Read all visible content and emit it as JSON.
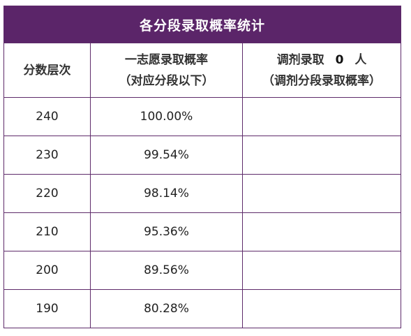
{
  "table": {
    "title": "各分段录取概率统计",
    "headers": {
      "level": "分数层次",
      "rate_line1": "一志愿录取概率",
      "rate_line2": "（对应分段以下）",
      "adjust_prefix": "调剂录取",
      "adjust_count": "0",
      "adjust_suffix": "人",
      "adjust_line2": "（调剂分段录取概率）"
    },
    "rows": [
      {
        "level": "240",
        "rate": "100.00%",
        "adjust": ""
      },
      {
        "level": "230",
        "rate": "99.54%",
        "adjust": ""
      },
      {
        "level": "220",
        "rate": "98.14%",
        "adjust": ""
      },
      {
        "level": "210",
        "rate": "95.36%",
        "adjust": ""
      },
      {
        "level": "200",
        "rate": "89.56%",
        "adjust": ""
      },
      {
        "level": "190",
        "rate": "80.28%",
        "adjust": ""
      }
    ]
  },
  "colors": {
    "header_bg": "#5b2569",
    "border": "#5e2b6a"
  }
}
